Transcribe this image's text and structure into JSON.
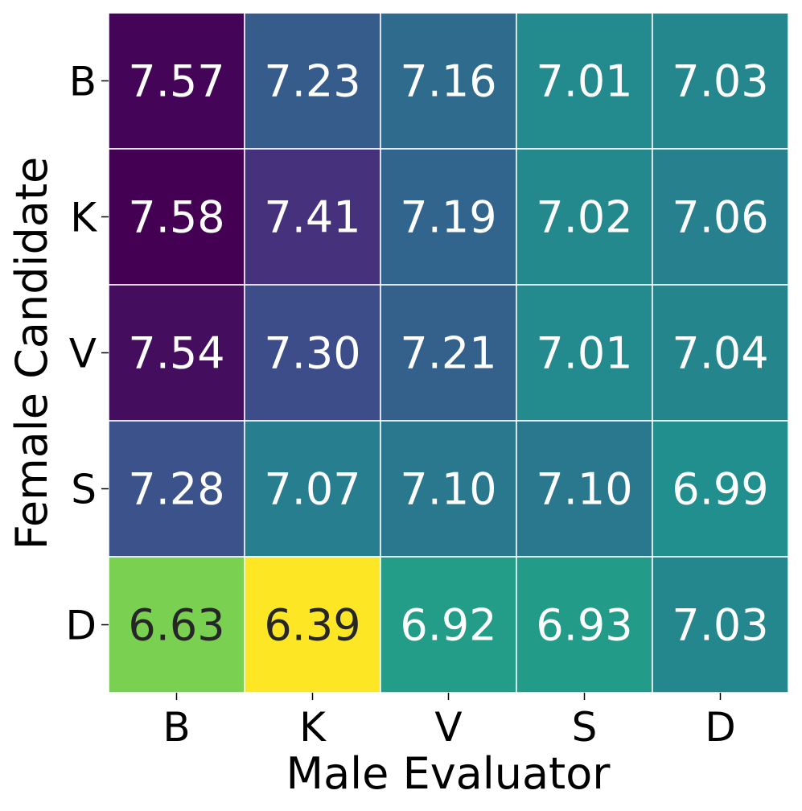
{
  "chart_data": {
    "type": "heatmap",
    "xlabel": "Male Evaluator",
    "ylabel": "Female Candidate",
    "x_categories": [
      "B",
      "K",
      "V",
      "S",
      "D"
    ],
    "y_categories": [
      "B",
      "K",
      "V",
      "S",
      "D"
    ],
    "values": [
      [
        7.57,
        7.23,
        7.16,
        7.01,
        7.03
      ],
      [
        7.58,
        7.41,
        7.19,
        7.02,
        7.06
      ],
      [
        7.54,
        7.3,
        7.21,
        7.01,
        7.04
      ],
      [
        7.28,
        7.07,
        7.1,
        7.1,
        6.99
      ],
      [
        6.63,
        6.39,
        6.92,
        6.93,
        7.03
      ]
    ],
    "colormap": "viridis_r",
    "vmin": 6.39,
    "vmax": 7.58,
    "annotations": true,
    "colorbar": false,
    "grid_line_color": "#ffffff"
  }
}
